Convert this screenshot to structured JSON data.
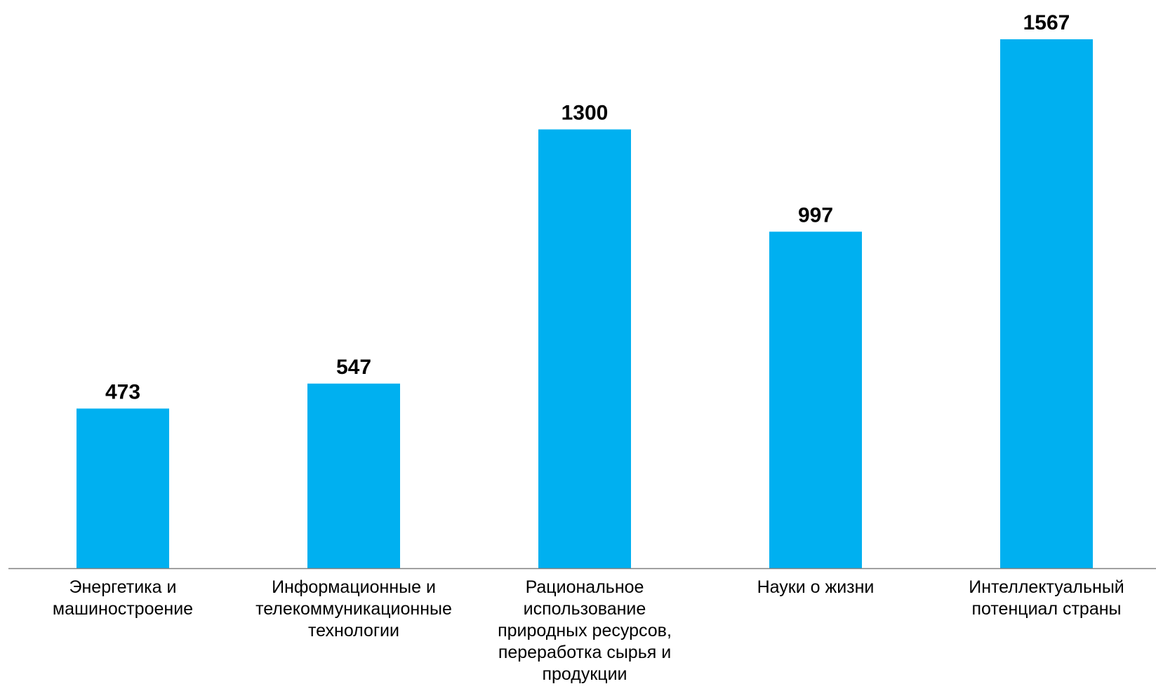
{
  "chart_data": {
    "type": "bar",
    "title": "",
    "xlabel": "",
    "ylabel": "",
    "ylim": [
      0,
      1567
    ],
    "grid": false,
    "legend": "none",
    "bar_color": "#00B0F0",
    "axis_color": "#808080",
    "categories": [
      [
        "Энергетика и",
        "машиностроение"
      ],
      [
        "Информационные и",
        "телекоммуникационные",
        "технологии"
      ],
      [
        "Рациональное",
        "использование",
        "природных ресурсов,",
        "переработка сырья и",
        "продукции"
      ],
      [
        "Науки о жизни"
      ],
      [
        "Интеллектуальный",
        "потенциал страны"
      ]
    ],
    "values": [
      473,
      547,
      1300,
      997,
      1567
    ],
    "value_labels": [
      "473",
      "547",
      "1300",
      "997",
      "1567"
    ]
  }
}
